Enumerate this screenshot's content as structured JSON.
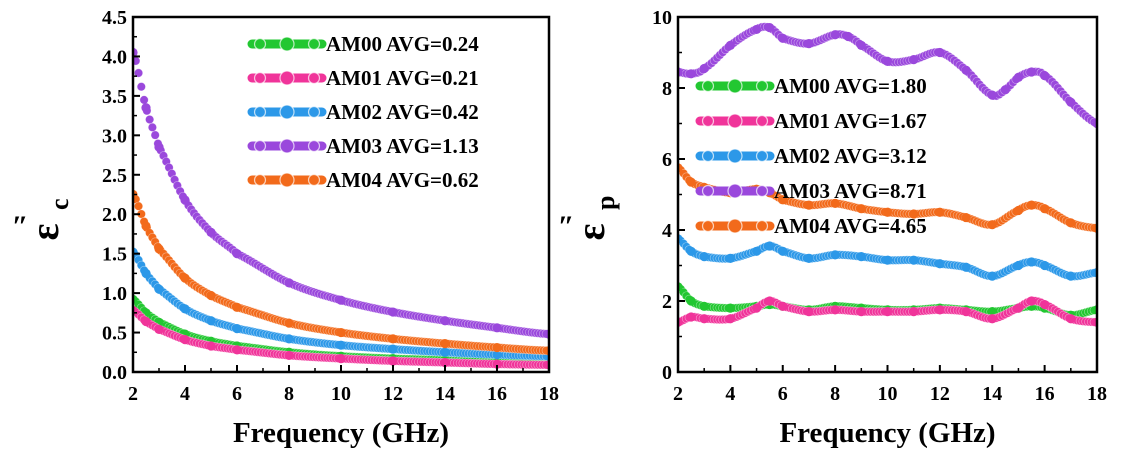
{
  "chart_data": [
    {
      "type": "scatter",
      "xlabel": "Frequency (GHz)",
      "ylabel_symbol": "ε",
      "ylabel_subscript": "c",
      "ylabel_prime": "″",
      "xlim": [
        2,
        18
      ],
      "ylim": [
        0,
        4.5
      ],
      "xticks": [
        "2",
        "4",
        "6",
        "8",
        "10",
        "12",
        "14",
        "16",
        "18"
      ],
      "yticks": [
        "0.0",
        "0.5",
        "1.0",
        "1.5",
        "2.0",
        "2.5",
        "3.0",
        "3.5",
        "4.0",
        "4.5"
      ],
      "legend_position": "top-right",
      "series": [
        {
          "name": "AM00 AVG=0.24",
          "color": "#22c731",
          "x": [
            2,
            2.5,
            3,
            4,
            5,
            6,
            8,
            10,
            12,
            14,
            16,
            18
          ],
          "y": [
            0.92,
            0.75,
            0.63,
            0.48,
            0.39,
            0.33,
            0.25,
            0.2,
            0.17,
            0.15,
            0.13,
            0.12
          ]
        },
        {
          "name": "AM01 AVG=0.21",
          "color": "#f0349a",
          "x": [
            2,
            2.5,
            3,
            4,
            5,
            6,
            8,
            10,
            12,
            14,
            16,
            18
          ],
          "y": [
            0.78,
            0.64,
            0.54,
            0.41,
            0.33,
            0.28,
            0.21,
            0.17,
            0.14,
            0.12,
            0.1,
            0.09
          ]
        },
        {
          "name": "AM02 AVG=0.42",
          "color": "#2c98e8",
          "x": [
            2,
            2.5,
            3,
            4,
            5,
            6,
            8,
            10,
            12,
            14,
            16,
            18
          ],
          "y": [
            1.52,
            1.25,
            1.05,
            0.8,
            0.65,
            0.55,
            0.42,
            0.34,
            0.29,
            0.25,
            0.22,
            0.2
          ]
        },
        {
          "name": "AM03 AVG=1.13",
          "color": "#9a48dc",
          "x": [
            2,
            2.5,
            3,
            4,
            5,
            6,
            8,
            10,
            12,
            14,
            16,
            18
          ],
          "y": [
            4.05,
            3.35,
            2.85,
            2.18,
            1.77,
            1.5,
            1.13,
            0.91,
            0.76,
            0.65,
            0.56,
            0.48
          ]
        },
        {
          "name": "AM04 AVG=0.62",
          "color": "#f26a1b",
          "x": [
            2,
            2.5,
            3,
            4,
            5,
            6,
            8,
            10,
            12,
            14,
            16,
            18
          ],
          "y": [
            2.25,
            1.85,
            1.56,
            1.19,
            0.97,
            0.82,
            0.62,
            0.5,
            0.42,
            0.36,
            0.31,
            0.27
          ]
        }
      ]
    },
    {
      "type": "scatter",
      "xlabel": "Frequency (GHz)",
      "ylabel_symbol": "ε",
      "ylabel_subscript": "p",
      "ylabel_prime": "″",
      "xlim": [
        2,
        18
      ],
      "ylim": [
        0,
        10
      ],
      "xticks": [
        "2",
        "4",
        "6",
        "8",
        "10",
        "12",
        "14",
        "16",
        "18"
      ],
      "yticks": [
        "0",
        "2",
        "4",
        "6",
        "8",
        "10"
      ],
      "legend_position": "center-left",
      "series": [
        {
          "name": "AM00 AVG=1.80",
          "color": "#22c731",
          "x": [
            2,
            2.5,
            3,
            4,
            5,
            5.5,
            6,
            7,
            8,
            9,
            10,
            11,
            12,
            13,
            14,
            15,
            15.5,
            16,
            17,
            18
          ],
          "y": [
            2.4,
            2.0,
            1.85,
            1.8,
            1.85,
            1.9,
            1.85,
            1.75,
            1.85,
            1.8,
            1.75,
            1.75,
            1.8,
            1.75,
            1.7,
            1.8,
            1.85,
            1.8,
            1.6,
            1.75
          ]
        },
        {
          "name": "AM01 AVG=1.67",
          "color": "#f0349a",
          "x": [
            2,
            2.5,
            3,
            4,
            5,
            5.5,
            6,
            7,
            8,
            9,
            10,
            11,
            12,
            13,
            14,
            15,
            15.5,
            16,
            17,
            18
          ],
          "y": [
            1.4,
            1.55,
            1.5,
            1.5,
            1.8,
            2.0,
            1.85,
            1.7,
            1.75,
            1.7,
            1.7,
            1.7,
            1.75,
            1.7,
            1.5,
            1.8,
            2.0,
            1.9,
            1.5,
            1.4
          ]
        },
        {
          "name": "AM02 AVG=3.12",
          "color": "#2c98e8",
          "x": [
            2,
            2.5,
            3,
            4,
            5,
            5.5,
            6,
            7,
            8,
            9,
            10,
            11,
            12,
            13,
            14,
            15,
            15.5,
            16,
            17,
            18
          ],
          "y": [
            3.75,
            3.4,
            3.25,
            3.2,
            3.4,
            3.55,
            3.4,
            3.2,
            3.3,
            3.25,
            3.15,
            3.15,
            3.05,
            2.95,
            2.7,
            3.0,
            3.1,
            3.0,
            2.7,
            2.8
          ]
        },
        {
          "name": "AM03 AVG=8.71",
          "color": "#9a48dc",
          "x": [
            2,
            2.5,
            3,
            4,
            5,
            5.5,
            6,
            7,
            8,
            8.5,
            9,
            10,
            11,
            12,
            13,
            14,
            14.5,
            15,
            15.5,
            16,
            17,
            18
          ],
          "y": [
            8.45,
            8.4,
            8.55,
            9.2,
            9.65,
            9.7,
            9.4,
            9.25,
            9.5,
            9.45,
            9.2,
            8.75,
            8.8,
            9.0,
            8.5,
            7.8,
            7.95,
            8.3,
            8.45,
            8.35,
            7.6,
            7.0
          ]
        },
        {
          "name": "AM04 AVG=4.65",
          "color": "#f26a1b",
          "x": [
            2,
            2.5,
            3,
            4,
            5,
            5.5,
            6,
            7,
            8,
            9,
            10,
            11,
            12,
            13,
            14,
            15,
            15.5,
            16,
            17,
            18
          ],
          "y": [
            5.75,
            5.35,
            5.2,
            5.05,
            5.15,
            5.05,
            4.85,
            4.7,
            4.75,
            4.6,
            4.5,
            4.45,
            4.5,
            4.35,
            4.15,
            4.55,
            4.7,
            4.6,
            4.2,
            4.05
          ]
        }
      ]
    }
  ]
}
